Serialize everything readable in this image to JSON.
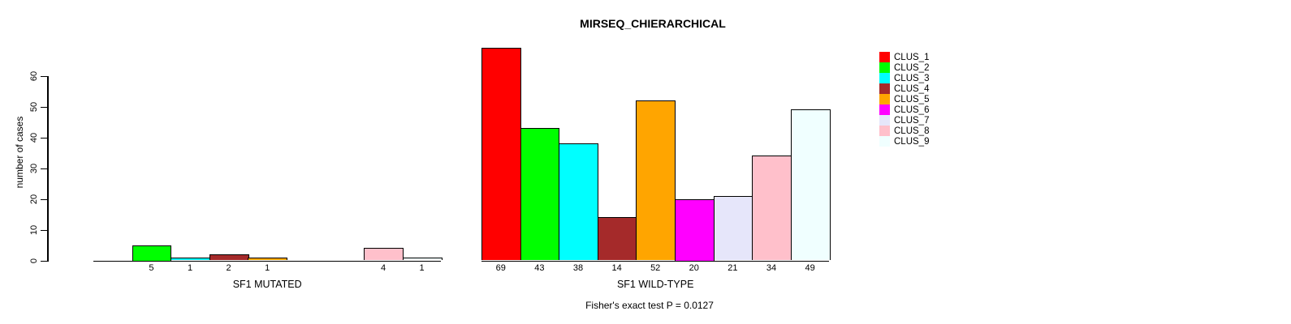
{
  "chart_data": {
    "type": "bar",
    "title": "MIRSEQ_CHIERARCHICAL",
    "ylabel": "number of cases",
    "annotation": "Fisher's exact test P = 0.0127",
    "ylim": [
      0,
      60
    ],
    "yticks": [
      0,
      10,
      20,
      30,
      40,
      50,
      60
    ],
    "grid": false,
    "legend_position": "right-outside",
    "clusters": [
      {
        "name": "CLUS_1",
        "color": "#FF0000"
      },
      {
        "name": "CLUS_2",
        "color": "#00FF00"
      },
      {
        "name": "CLUS_3",
        "color": "#00FFFF"
      },
      {
        "name": "CLUS_4",
        "color": "#A52A2A"
      },
      {
        "name": "CLUS_5",
        "color": "#FFA500"
      },
      {
        "name": "CLUS_6",
        "color": "#FF00FF"
      },
      {
        "name": "CLUS_7",
        "color": "#E6E6FA"
      },
      {
        "name": "CLUS_8",
        "color": "#FFC0CB"
      },
      {
        "name": "CLUS_9",
        "color": "#F0FFFF"
      }
    ],
    "groups": [
      {
        "label": "SF1 MUTATED",
        "values": [
          0,
          5,
          1,
          2,
          1,
          0,
          0,
          4,
          1
        ]
      },
      {
        "label": "SF1 WILD-TYPE",
        "values": [
          69,
          43,
          38,
          14,
          52,
          20,
          21,
          34,
          49
        ]
      }
    ]
  }
}
